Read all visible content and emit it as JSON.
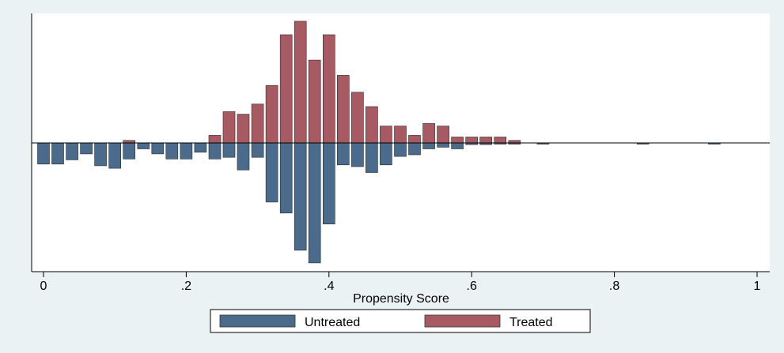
{
  "chart_data": {
    "type": "bar",
    "subtype": "mirrored-histogram",
    "title": "",
    "xlabel": "Propensity Score",
    "ylabel": "",
    "xlim": [
      0,
      1
    ],
    "x_ticks": [
      0,
      0.2,
      0.4,
      0.6,
      0.8,
      1
    ],
    "x_tick_labels": [
      "0",
      ".2",
      ".4",
      ".6",
      ".8",
      "1"
    ],
    "ylim": [
      -150,
      155
    ],
    "bin_width": 0.02,
    "grid": false,
    "legend_position": "bottom",
    "series": [
      {
        "name": "Untreated",
        "color": "#4a6b8c",
        "direction": "down",
        "bins": [
          {
            "x": 0.0,
            "y": 25
          },
          {
            "x": 0.02,
            "y": 25
          },
          {
            "x": 0.04,
            "y": 20
          },
          {
            "x": 0.06,
            "y": 13
          },
          {
            "x": 0.08,
            "y": 27
          },
          {
            "x": 0.1,
            "y": 30
          },
          {
            "x": 0.12,
            "y": 19
          },
          {
            "x": 0.14,
            "y": 7
          },
          {
            "x": 0.16,
            "y": 13
          },
          {
            "x": 0.18,
            "y": 19
          },
          {
            "x": 0.2,
            "y": 19
          },
          {
            "x": 0.22,
            "y": 11
          },
          {
            "x": 0.24,
            "y": 19
          },
          {
            "x": 0.26,
            "y": 17
          },
          {
            "x": 0.28,
            "y": 32
          },
          {
            "x": 0.3,
            "y": 17
          },
          {
            "x": 0.32,
            "y": 70
          },
          {
            "x": 0.34,
            "y": 83
          },
          {
            "x": 0.36,
            "y": 127
          },
          {
            "x": 0.38,
            "y": 142
          },
          {
            "x": 0.4,
            "y": 96
          },
          {
            "x": 0.42,
            "y": 26
          },
          {
            "x": 0.44,
            "y": 28
          },
          {
            "x": 0.46,
            "y": 35
          },
          {
            "x": 0.48,
            "y": 26
          },
          {
            "x": 0.5,
            "y": 16
          },
          {
            "x": 0.52,
            "y": 14
          },
          {
            "x": 0.54,
            "y": 7
          },
          {
            "x": 0.56,
            "y": 5
          },
          {
            "x": 0.58,
            "y": 7
          },
          {
            "x": 0.6,
            "y": 2
          },
          {
            "x": 0.62,
            "y": 2
          },
          {
            "x": 0.64,
            "y": 1
          },
          {
            "x": 0.66,
            "y": 1
          },
          {
            "x": 0.7,
            "y": 1
          },
          {
            "x": 0.84,
            "y": 1
          },
          {
            "x": 0.94,
            "y": 1
          }
        ]
      },
      {
        "name": "Treated",
        "color": "#a85a62",
        "direction": "up",
        "bins": [
          {
            "x": 0.12,
            "y": 3
          },
          {
            "x": 0.24,
            "y": 9
          },
          {
            "x": 0.26,
            "y": 37
          },
          {
            "x": 0.28,
            "y": 34
          },
          {
            "x": 0.3,
            "y": 46
          },
          {
            "x": 0.32,
            "y": 68
          },
          {
            "x": 0.34,
            "y": 128
          },
          {
            "x": 0.36,
            "y": 144
          },
          {
            "x": 0.38,
            "y": 98
          },
          {
            "x": 0.4,
            "y": 128
          },
          {
            "x": 0.42,
            "y": 80
          },
          {
            "x": 0.44,
            "y": 60
          },
          {
            "x": 0.46,
            "y": 43
          },
          {
            "x": 0.48,
            "y": 20
          },
          {
            "x": 0.5,
            "y": 20
          },
          {
            "x": 0.52,
            "y": 9
          },
          {
            "x": 0.54,
            "y": 23
          },
          {
            "x": 0.56,
            "y": 20
          },
          {
            "x": 0.58,
            "y": 7
          },
          {
            "x": 0.6,
            "y": 7
          },
          {
            "x": 0.62,
            "y": 7
          },
          {
            "x": 0.64,
            "y": 7
          },
          {
            "x": 0.66,
            "y": 3
          }
        ]
      }
    ]
  }
}
